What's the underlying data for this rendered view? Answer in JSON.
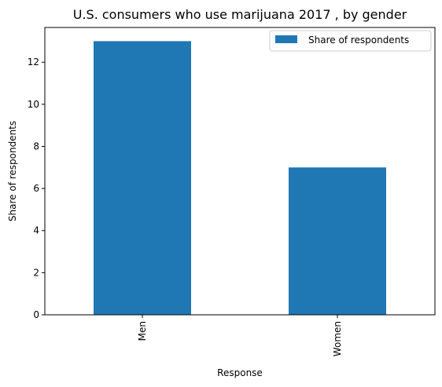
{
  "chart_data": {
    "type": "bar",
    "title": "U.S. consumers who use marijuana 2017 , by gender",
    "xlabel": "Response",
    "ylabel": "Share of respondents",
    "categories": [
      "Men",
      "Women"
    ],
    "series": [
      {
        "name": "Share of respondents",
        "values": [
          13,
          7
        ]
      }
    ],
    "ylim": [
      0,
      13.65
    ],
    "yticks": [
      0,
      2,
      4,
      6,
      8,
      10,
      12
    ],
    "grid": false,
    "legend_position": "top-right",
    "colors": {
      "bar": "#1f77b4"
    }
  }
}
